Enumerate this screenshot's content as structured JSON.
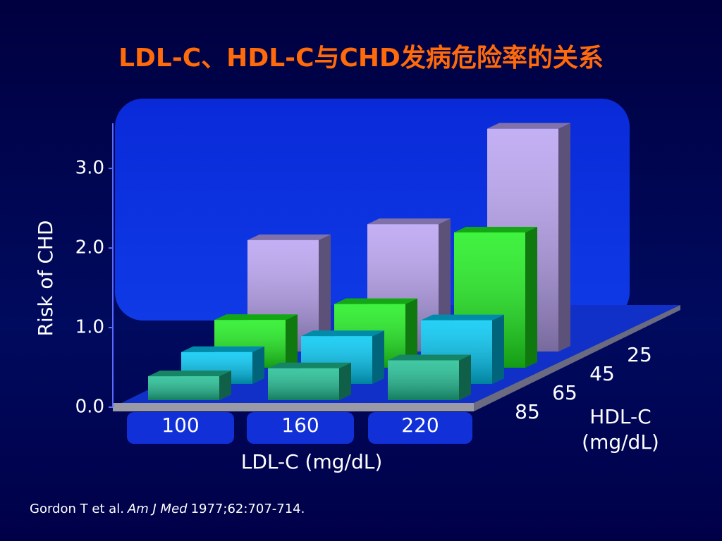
{
  "chart_data": {
    "type": "bar3d",
    "title": "LDL-C、HDL-C与CHD发病危险率的关系",
    "y_label": "Risk of CHD",
    "x_label": "LDL-C (mg/dL)",
    "depth_label": "HDL-C (mg/dL)",
    "categories": [
      "100",
      "160",
      "220"
    ],
    "series": [
      {
        "name": "85",
        "color": "#1fbf93",
        "values": [
          0.3,
          0.4,
          0.5
        ]
      },
      {
        "name": "65",
        "color": "#00c8f5",
        "values": [
          0.4,
          0.6,
          0.8
        ]
      },
      {
        "name": "45",
        "color": "#1ef01e",
        "values": [
          0.6,
          0.8,
          1.7
        ]
      },
      {
        "name": "25",
        "color": "#b9a2f2",
        "values": [
          1.4,
          1.6,
          2.8
        ]
      }
    ],
    "ylim": [
      0,
      3.7
    ],
    "yticks": [
      {
        "value": 0,
        "label": "0.0"
      },
      {
        "value": 1,
        "label": "1.0"
      },
      {
        "value": 2,
        "label": "2.0"
      },
      {
        "value": 3,
        "label": "3.0"
      }
    ]
  },
  "source": {
    "authors": "Gordon T et al.",
    "journal": "Am J Med",
    "citation": "1977;62:707-714."
  }
}
